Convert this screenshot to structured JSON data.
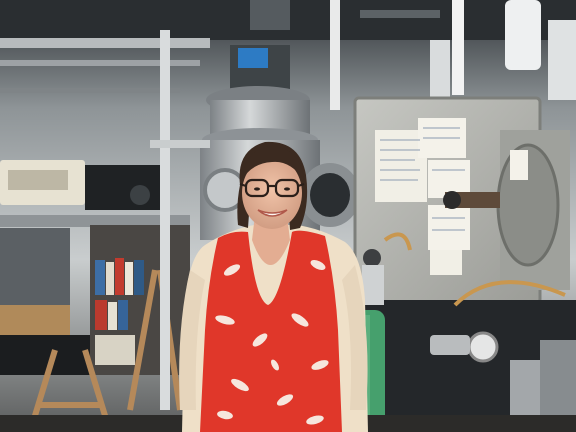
{
  "scene": {
    "alt": "",
    "palette": {
      "ceiling": "#3a3f44",
      "wall": "#cfd3d4",
      "steel": "#a9adb0",
      "steel_dark": "#6d7276",
      "chamber_panel": "#b9bab5",
      "note_paper": "#f1efe6",
      "cardigan": "#efe0c8",
      "blouse": "#e0372a",
      "blouse_print": "#f6e6dd",
      "hair": "#3b2a20",
      "skin": "#e6b49a",
      "gas_tank": "#46a06d",
      "floor": "#2c2b29"
    }
  }
}
